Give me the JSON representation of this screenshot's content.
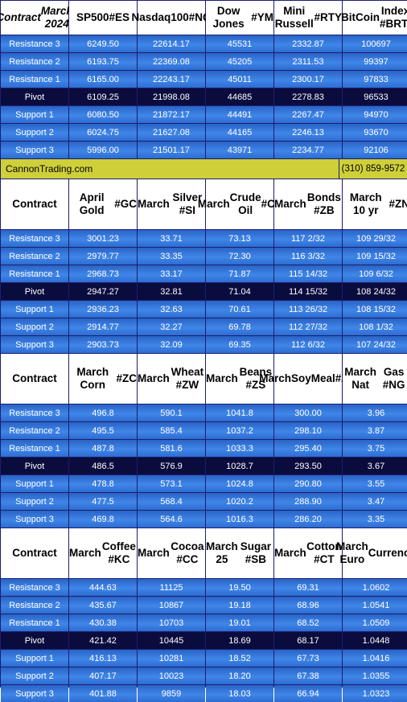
{
  "sections": [
    {
      "header": [
        "Contract\nMarch 2024",
        "SP500\n#ES",
        "Nasdaq100\n#NQ",
        "Dow Jones\n#YM",
        "Mini Russell\n#RTY",
        "BitCoin\nIndex #BRTI"
      ],
      "rows": [
        [
          "Resistance 3",
          "6249.50",
          "22614.17",
          "45531",
          "2332.87",
          "100697"
        ],
        [
          "Resistance 2",
          "6193.75",
          "22369.08",
          "45205",
          "2311.53",
          "99397"
        ],
        [
          "Resistance 1",
          "6165.00",
          "22243.17",
          "45011",
          "2300.17",
          "97833"
        ],
        [
          "Pivot",
          "6109.25",
          "21998.08",
          "44685",
          "2278.83",
          "96533"
        ],
        [
          "Support 1",
          "6080.50",
          "21872.17",
          "44491",
          "2267.47",
          "94970"
        ],
        [
          "Support 2",
          "6024.75",
          "21627.08",
          "44165",
          "2246.13",
          "93670"
        ],
        [
          "Support 3",
          "5996.00",
          "21501.17",
          "43971",
          "2234.77",
          "92106"
        ]
      ]
    },
    {
      "header": [
        "Contract",
        "April Gold\n#GC",
        "March\nSilver #SI",
        "March\nCrude Oil\n#CL",
        "March\nBonds  #ZB",
        "March 10 yr\n#ZN"
      ],
      "rows": [
        [
          "Resistance 3",
          "3001.23",
          "33.71",
          "73.13",
          "117  2/32",
          "109 29/32"
        ],
        [
          "Resistance 2",
          "2979.77",
          "33.35",
          "72.30",
          "116  3/32",
          "109 15/32"
        ],
        [
          "Resistance 1",
          "2968.73",
          "33.17",
          "71.87",
          "115 14/32",
          "109  6/32"
        ],
        [
          "Pivot",
          "2947.27",
          "32.81",
          "71.04",
          "114 15/32",
          "108 24/32"
        ],
        [
          "Support 1",
          "2936.23",
          "32.63",
          "70.61",
          "113 26/32",
          "108 15/32"
        ],
        [
          "Support 2",
          "2914.77",
          "32.27",
          "69.78",
          "112 27/32",
          "108  1/32"
        ],
        [
          "Support 3",
          "2903.73",
          "32.09",
          "69.35",
          "112  6/32",
          "107 24/32"
        ]
      ]
    },
    {
      "header": [
        "Contract",
        "March Corn\n#ZC",
        "March\nWheat #ZW",
        "March\nBeans #ZS",
        "March\nSoyMeal\n#ZM",
        "March Nat\nGas #NG"
      ],
      "rows": [
        [
          "Resistance 3",
          "496.8",
          "590.1",
          "1041.8",
          "300.00",
          "3.96"
        ],
        [
          "Resistance 2",
          "495.5",
          "585.4",
          "1037.2",
          "298.10",
          "3.87"
        ],
        [
          "Resistance 1",
          "487.8",
          "581.6",
          "1033.3",
          "295.40",
          "3.75"
        ],
        [
          "Pivot",
          "486.5",
          "576.9",
          "1028.7",
          "293.50",
          "3.67"
        ],
        [
          "Support 1",
          "478.8",
          "573.1",
          "1024.8",
          "290.80",
          "3.55"
        ],
        [
          "Support 2",
          "477.5",
          "568.4",
          "1020.2",
          "288.90",
          "3.47"
        ],
        [
          "Support 3",
          "469.8",
          "564.6",
          "1016.3",
          "286.20",
          "3.35"
        ]
      ]
    },
    {
      "header": [
        "Contract",
        "March\nCoffee #KC",
        "March\nCocoa #CC",
        "March 25\nSugar #SB",
        "March\nCotton #CT",
        "March Euro\nCurrency"
      ],
      "rows": [
        [
          "Resistance 3",
          "444.63",
          "11125",
          "19.50",
          "69.31",
          "1.0602"
        ],
        [
          "Resistance 2",
          "435.67",
          "10867",
          "19.18",
          "68.96",
          "1.0541"
        ],
        [
          "Resistance 1",
          "430.38",
          "10703",
          "19.01",
          "68.52",
          "1.0509"
        ],
        [
          "Pivot",
          "421.42",
          "10445",
          "18.69",
          "68.17",
          "1.0448"
        ],
        [
          "Support 1",
          "416.13",
          "10281",
          "18.52",
          "67.73",
          "1.0416"
        ],
        [
          "Support 2",
          "407.17",
          "10023",
          "18.20",
          "67.38",
          "1.0355"
        ],
        [
          "Support 3",
          "401.88",
          "9859",
          "18.03",
          "66.94",
          "1.0323"
        ]
      ]
    }
  ],
  "banner": {
    "site": "CannonTrading.com",
    "phone": "(310) 859-9572"
  }
}
